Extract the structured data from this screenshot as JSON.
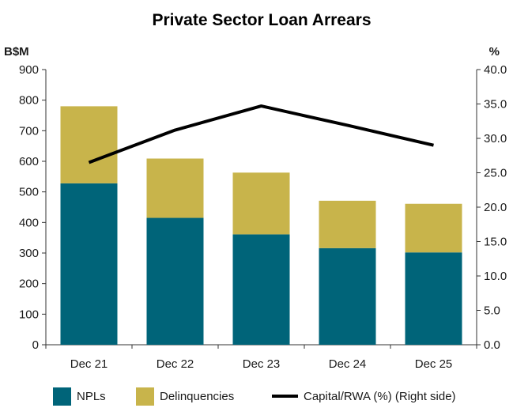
{
  "chart_data": {
    "type": "bar",
    "title": "Private Sector Loan Arrears",
    "left_unit": "B$M",
    "right_unit": "%",
    "categories": [
      "Dec 21",
      "Dec 22",
      "Dec 23",
      "Dec 24",
      "Dec 25"
    ],
    "ylim": [
      0,
      900
    ],
    "y_ticks": [
      "0",
      "100",
      "200",
      "300",
      "400",
      "500",
      "600",
      "700",
      "800",
      "900"
    ],
    "y2lim": [
      0,
      40
    ],
    "y2_ticks": [
      "0.0",
      "5.0",
      "10.0",
      "15.0",
      "20.0",
      "25.0",
      "30.0",
      "35.0",
      "40.0"
    ],
    "series": [
      {
        "name": "NPLs",
        "kind": "bar",
        "stack": "arrears",
        "color": "#006479",
        "values": [
          528,
          415,
          361,
          316,
          302
        ]
      },
      {
        "name": "Delinquencies",
        "kind": "bar",
        "stack": "arrears",
        "color": "#c8b44b",
        "values": [
          252,
          194,
          202,
          155,
          159
        ]
      },
      {
        "name": "Capital/RWA (%) (Right side)",
        "kind": "line",
        "axis": "right",
        "color": "#000000",
        "values": [
          26.5,
          31.2,
          34.7,
          31.9,
          29.0
        ]
      }
    ],
    "legend_position": "bottom",
    "grid": false
  }
}
